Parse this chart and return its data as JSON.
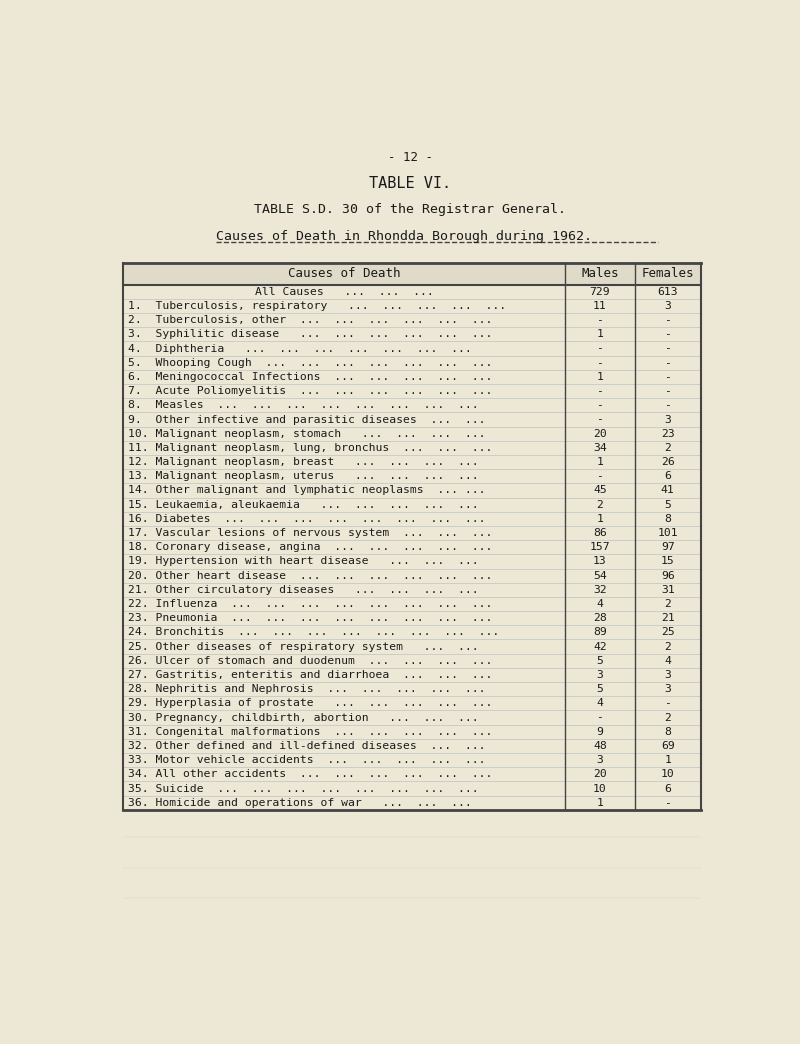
{
  "page_num": "- 12 -",
  "title1": "TABLE VI.",
  "title2": "TABLE S.D. 30 of the Registrar General.",
  "title3": "Causes of Death in Rhondda Borough during 1962.",
  "col_header": [
    "Causes of Death",
    "Males",
    "Females"
  ],
  "rows": [
    [
      "All Causes   ...  ...  ...",
      "729",
      "613"
    ],
    [
      "1.  Tuberculosis, respiratory   ...  ...  ...  ...  ...",
      "11",
      "3"
    ],
    [
      "2.  Tuberculosis, other  ...  ...  ...  ...  ...  ...",
      "-",
      "-"
    ],
    [
      "3.  Syphilitic disease   ...  ...  ...  ...  ...  ...",
      "1",
      "-"
    ],
    [
      "4.  Diphtheria   ...  ...  ...  ...  ...  ...  ...",
      "-",
      "-"
    ],
    [
      "5.  Whooping Cough  ...  ...  ...  ...  ...  ...  ...",
      "-",
      "-"
    ],
    [
      "6.  Meningococcal Infections  ...  ...  ...  ...  ...",
      "1",
      "-"
    ],
    [
      "7.  Acute Poliomyelitis  ...  ...  ...  ...  ...  ...",
      "-",
      "-"
    ],
    [
      "8.  Measles  ...  ...  ...  ...  ...  ...  ...  ...",
      "-",
      "-"
    ],
    [
      "9.  Other infective and parasitic diseases  ...  ...",
      "-",
      "3"
    ],
    [
      "10. Malignant neoplasm, stomach   ...  ...  ...  ...",
      "20",
      "23"
    ],
    [
      "11. Malignant neoplasm, lung, bronchus  ...  ...  ...",
      "34",
      "2"
    ],
    [
      "12. Malignant neoplasm, breast   ...  ...  ...  ...",
      "1",
      "26"
    ],
    [
      "13. Malignant neoplasm, uterus   ...  ...  ...  ...",
      "-",
      "6"
    ],
    [
      "14. Other malignant and lymphatic neoplasms  ... ...",
      "45",
      "41"
    ],
    [
      "15. Leukaemia, aleukaemia   ...  ...  ...  ...  ...",
      "2",
      "5"
    ],
    [
      "16. Diabetes  ...  ...  ...  ...  ...  ...  ...  ...",
      "1",
      "8"
    ],
    [
      "17. Vascular lesions of nervous system  ...  ...  ...",
      "86",
      "101"
    ],
    [
      "18. Coronary disease, angina  ...  ...  ...  ...  ...",
      "157",
      "97"
    ],
    [
      "19. Hypertension with heart disease   ...  ...  ...",
      "13",
      "15"
    ],
    [
      "20. Other heart disease  ...  ...  ...  ...  ...  ...",
      "54",
      "96"
    ],
    [
      "21. Other circulatory diseases   ...  ...  ...  ...",
      "32",
      "31"
    ],
    [
      "22. Influenza  ...  ...  ...  ...  ...  ...  ...  ...",
      "4",
      "2"
    ],
    [
      "23. Pneumonia  ...  ...  ...  ...  ...  ...  ...  ...",
      "28",
      "21"
    ],
    [
      "24. Bronchitis  ...  ...  ...  ...  ...  ...  ...  ...",
      "89",
      "25"
    ],
    [
      "25. Other diseases of respiratory system   ...  ...",
      "42",
      "2"
    ],
    [
      "26. Ulcer of stomach and duodenum  ...  ...  ...  ...",
      "5",
      "4"
    ],
    [
      "27. Gastritis, enteritis and diarrhoea  ...  ...  ...",
      "3",
      "3"
    ],
    [
      "28. Nephritis and Nephrosis  ...  ...  ...  ...  ...",
      "5",
      "3"
    ],
    [
      "29. Hyperplasia of prostate   ...  ...  ...  ...  ...",
      "4",
      "-"
    ],
    [
      "30. Pregnancy, childbirth, abortion   ...  ...  ...",
      "-",
      "2"
    ],
    [
      "31. Congenital malformations  ...  ...  ...  ...  ...",
      "9",
      "8"
    ],
    [
      "32. Other defined and ill-defined diseases  ...  ...",
      "48",
      "69"
    ],
    [
      "33. Motor vehicle accidents  ...  ...  ...  ...  ...",
      "3",
      "1"
    ],
    [
      "34. All other accidents  ...  ...  ...  ...  ...  ...",
      "20",
      "10"
    ],
    [
      "35. Suicide  ...  ...  ...  ...  ...  ...  ...  ...",
      "10",
      "6"
    ],
    [
      "36. Homicide and operations of war   ...  ...  ...",
      "1",
      "-"
    ]
  ],
  "bg_color": "#ede8d5",
  "text_color": "#1a1a1a",
  "table_bg": "#ede8d5",
  "header_bg": "#e0dbc8",
  "line_color": "#444444",
  "grid_color": "#8899aa"
}
